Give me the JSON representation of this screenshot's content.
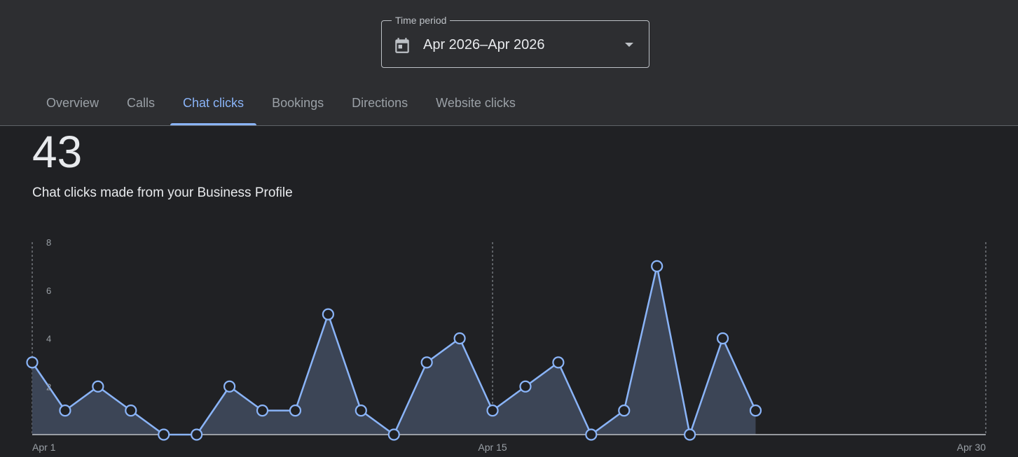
{
  "time_period": {
    "label": "Time period",
    "value": "Apr 2026–Apr 2026",
    "icon": "calendar-icon"
  },
  "tabs": [
    {
      "label": "Overview",
      "active": false
    },
    {
      "label": "Calls",
      "active": false
    },
    {
      "label": "Chat clicks",
      "active": true
    },
    {
      "label": "Bookings",
      "active": false
    },
    {
      "label": "Directions",
      "active": false
    },
    {
      "label": "Website clicks",
      "active": false
    }
  ],
  "summary": {
    "total": "43",
    "description": "Chat clicks made from your Business Profile"
  },
  "colors": {
    "accent": "#8ab4f8",
    "area_fill": "#3c4556",
    "background": "#202124",
    "header": "#2d2e31"
  },
  "chart_data": {
    "type": "area",
    "x": [
      1,
      2,
      3,
      4,
      5,
      6,
      7,
      8,
      9,
      10,
      11,
      12,
      13,
      14,
      15,
      16,
      17,
      18,
      19,
      20,
      21,
      22,
      23
    ],
    "values": [
      3,
      1,
      2,
      1,
      0,
      0,
      2,
      1,
      1,
      5,
      1,
      0,
      3,
      4,
      1,
      2,
      3,
      0,
      1,
      7,
      0,
      4,
      1
    ],
    "xlim": [
      1,
      30
    ],
    "ylim": [
      0,
      8
    ],
    "y_ticks": [
      2,
      4,
      6,
      8
    ],
    "x_tick_labels": [
      {
        "day": 1,
        "label": "Apr 1"
      },
      {
        "day": 15,
        "label": "Apr 15"
      },
      {
        "day": 30,
        "label": "Apr 30"
      }
    ],
    "title": "",
    "xlabel": "",
    "ylabel": "",
    "grid": "dashed vertical lines at labeled days"
  }
}
